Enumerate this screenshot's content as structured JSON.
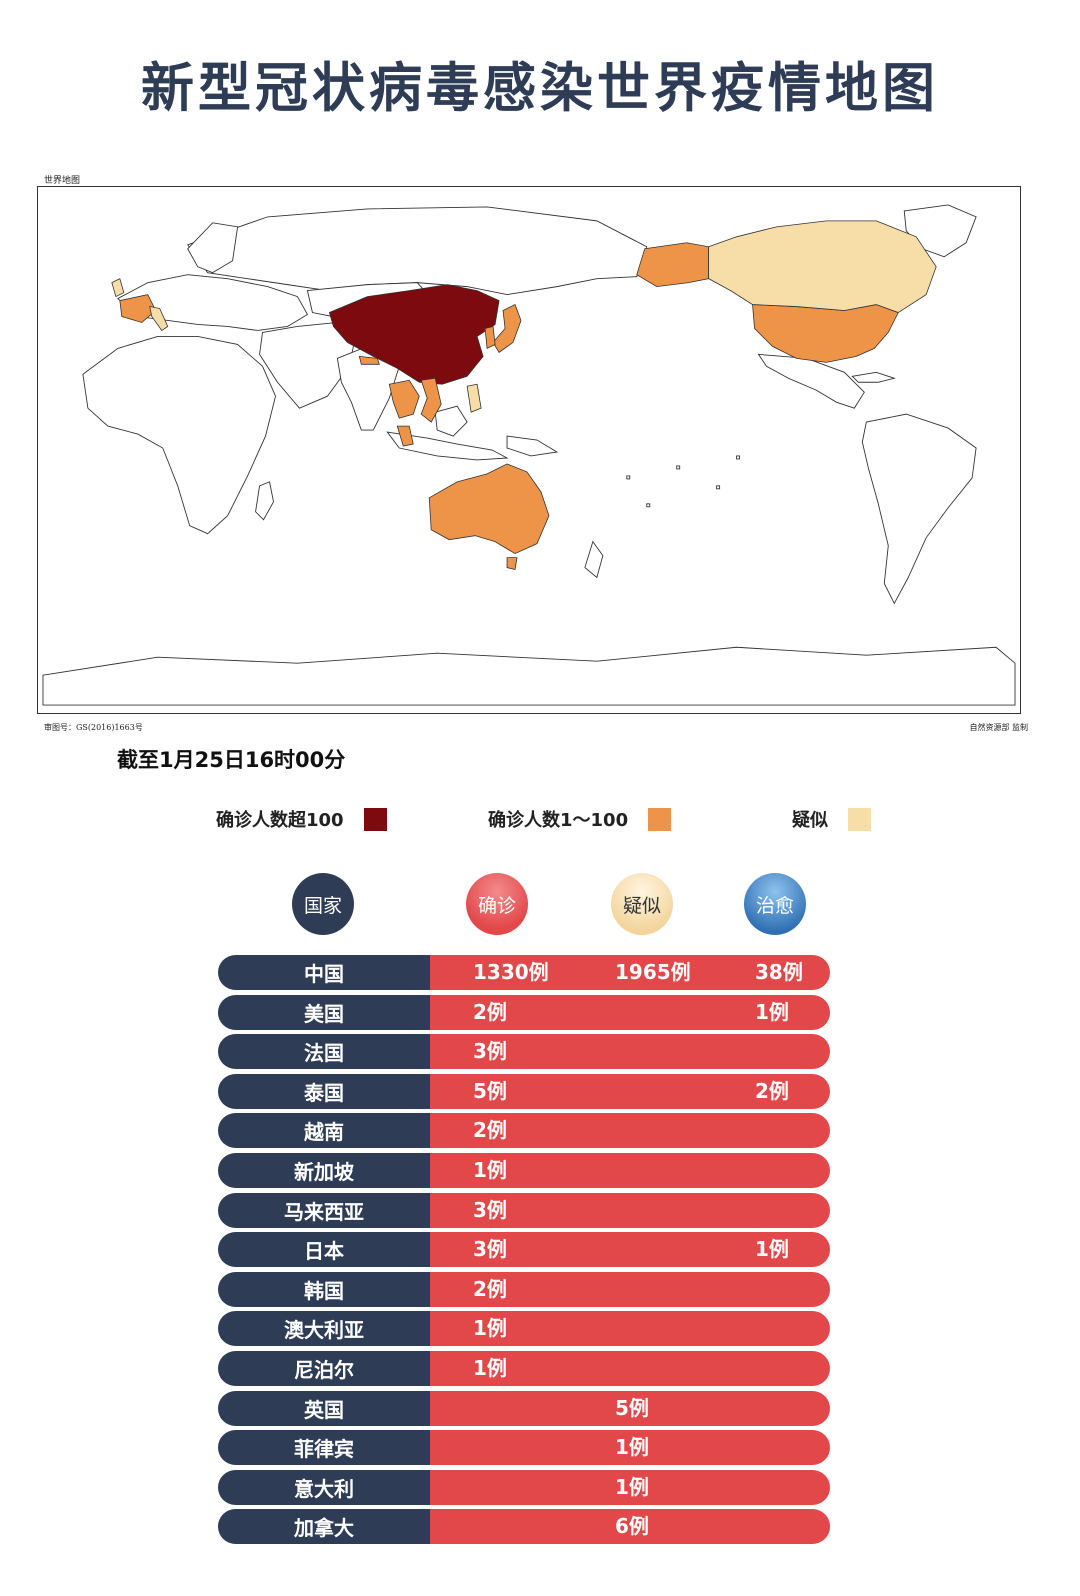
{
  "title": "新型冠状病毒感染世界疫情地图",
  "map": {
    "caption": "世界地图",
    "approval_number": "审图号：GS(2016)1663号",
    "credit": "自然资源部 监制",
    "colors": {
      "over_100": "#7c0a0e",
      "range_1_100": "#ee9448",
      "suspected": "#f7dda8",
      "none": "#ffffff",
      "outline": "#333333"
    },
    "highlighted": [
      {
        "region": "China",
        "level": "over_100"
      },
      {
        "region": "Japan",
        "level": "range_1_100"
      },
      {
        "region": "South Korea",
        "level": "range_1_100"
      },
      {
        "region": "Thailand",
        "level": "range_1_100"
      },
      {
        "region": "Vietnam",
        "level": "range_1_100"
      },
      {
        "region": "Malaysia",
        "level": "range_1_100"
      },
      {
        "region": "Singapore",
        "level": "range_1_100"
      },
      {
        "region": "Nepal",
        "level": "range_1_100"
      },
      {
        "region": "Australia",
        "level": "range_1_100"
      },
      {
        "region": "France",
        "level": "range_1_100"
      },
      {
        "region": "United States",
        "level": "range_1_100"
      },
      {
        "region": "United Kingdom",
        "level": "suspected"
      },
      {
        "region": "Italy",
        "level": "suspected"
      },
      {
        "region": "Philippines",
        "level": "suspected"
      },
      {
        "region": "Canada",
        "level": "suspected"
      }
    ]
  },
  "as_of": "截至1月25日16时00分",
  "legend": {
    "over_100": "确诊人数超100",
    "range_1_100": "确诊人数1～100",
    "suspected": "疑似"
  },
  "table": {
    "headers": {
      "country": "国家",
      "confirmed": "确诊",
      "suspected": "疑似",
      "cured": "治愈",
      "colors": {
        "country": "#2e3c56",
        "confirmed": "#e2474a",
        "suspected": "#f7dda8",
        "cured": "#2f6fb3"
      }
    },
    "rows": [
      {
        "country": "中国",
        "confirmed": "1330例",
        "suspected": "1965例",
        "cured": "38例"
      },
      {
        "country": "美国",
        "confirmed": "2例",
        "suspected": "",
        "cured": "1例"
      },
      {
        "country": "法国",
        "confirmed": "3例",
        "suspected": "",
        "cured": ""
      },
      {
        "country": "泰国",
        "confirmed": "5例",
        "suspected": "",
        "cured": "2例"
      },
      {
        "country": "越南",
        "confirmed": "2例",
        "suspected": "",
        "cured": ""
      },
      {
        "country": "新加坡",
        "confirmed": "1例",
        "suspected": "",
        "cured": ""
      },
      {
        "country": "马来西亚",
        "confirmed": "3例",
        "suspected": "",
        "cured": ""
      },
      {
        "country": "日本",
        "confirmed": "3例",
        "suspected": "",
        "cured": "1例"
      },
      {
        "country": "韩国",
        "confirmed": "2例",
        "suspected": "",
        "cured": ""
      },
      {
        "country": "澳大利亚",
        "confirmed": "1例",
        "suspected": "",
        "cured": ""
      },
      {
        "country": "尼泊尔",
        "confirmed": "1例",
        "suspected": "",
        "cured": ""
      },
      {
        "country": "英国",
        "confirmed": "",
        "suspected": "5例",
        "cured": ""
      },
      {
        "country": "菲律宾",
        "confirmed": "",
        "suspected": "1例",
        "cured": ""
      },
      {
        "country": "意大利",
        "confirmed": "",
        "suspected": "1例",
        "cured": ""
      },
      {
        "country": "加拿大",
        "confirmed": "",
        "suspected": "6例",
        "cured": ""
      }
    ]
  }
}
